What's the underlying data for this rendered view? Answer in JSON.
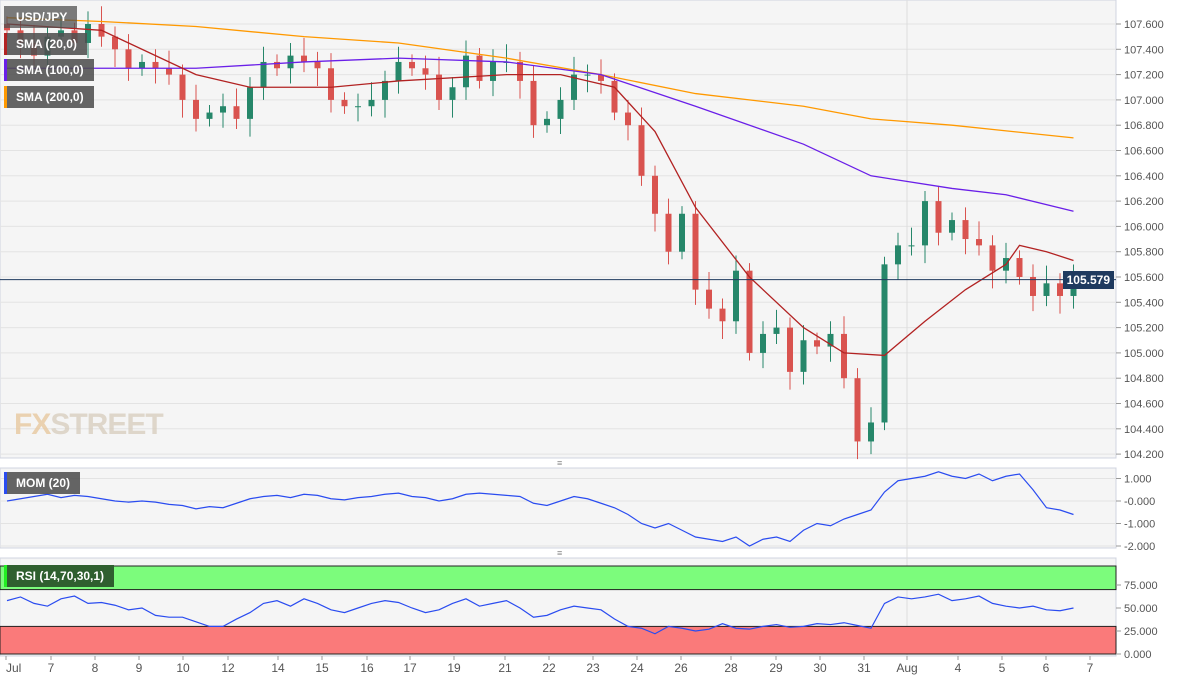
{
  "symbol": "USD/JPY",
  "last_price": "105.579",
  "logo": {
    "part1": "FX",
    "part2": "STREET"
  },
  "legends": {
    "sma20": "SMA (20,0)",
    "sma100": "SMA (100,0)",
    "sma200": "SMA (200,0)",
    "mom": "MOM (20)",
    "rsi": "RSI (14,70,30,1)"
  },
  "colors": {
    "up": "#26876a",
    "down": "#d9534f",
    "sma20": "#b22222",
    "sma100": "#6a1fe8",
    "sma200": "#ff9900",
    "mom": "#2a4cf0",
    "rsi": "#2a4cf0",
    "rsi_over": "#7cfc7c",
    "rsi_under": "#fa7a7a"
  },
  "chart_data": [
    {
      "type": "candlestick",
      "title": "USD/JPY",
      "ylim": [
        104.1,
        107.8
      ],
      "y_ticks": [
        "107.600",
        "107.400",
        "107.200",
        "107.000",
        "106.800",
        "106.600",
        "106.400",
        "106.200",
        "106.000",
        "105.800",
        "105.600",
        "105.400",
        "105.200",
        "105.000",
        "104.800",
        "104.600",
        "104.400",
        "104.200"
      ],
      "x_ticks": [
        "Jul",
        "7",
        "8",
        "9",
        "10",
        "12",
        "14",
        "15",
        "16",
        "17",
        "19",
        "21",
        "22",
        "23",
        "24",
        "26",
        "28",
        "29",
        "30",
        "31",
        "Aug",
        "4",
        "5",
        "6",
        "7"
      ],
      "close": [
        107.55,
        107.45,
        107.35,
        107.5,
        107.55,
        107.45,
        107.6,
        107.5,
        107.4,
        107.25,
        107.3,
        107.25,
        107.2,
        107.0,
        106.85,
        106.9,
        106.95,
        106.85,
        107.1,
        107.3,
        107.25,
        107.35,
        107.3,
        107.25,
        107.0,
        106.95,
        106.95,
        107.0,
        107.15,
        107.3,
        107.25,
        107.2,
        107.0,
        107.1,
        107.35,
        107.15,
        107.3,
        107.3,
        107.15,
        106.8,
        106.85,
        107.0,
        107.2,
        107.2,
        107.15,
        106.9,
        106.8,
        106.4,
        106.1,
        105.8,
        106.1,
        105.5,
        105.35,
        105.25,
        105.65,
        105.0,
        105.15,
        105.2,
        104.85,
        105.1,
        105.05,
        105.15,
        104.8,
        104.3,
        104.45,
        105.7,
        105.85,
        105.85,
        106.2,
        105.95,
        106.05,
        105.9,
        105.85,
        105.65,
        105.75,
        105.6,
        105.45,
        105.55,
        105.45,
        105.579
      ],
      "sma20": [
        [
          0,
          107.6
        ],
        [
          7,
          107.55
        ],
        [
          14,
          107.2
        ],
        [
          18,
          107.1
        ],
        [
          24,
          107.1
        ],
        [
          29,
          107.15
        ],
        [
          37,
          107.2
        ],
        [
          41,
          107.2
        ],
        [
          45,
          107.1
        ],
        [
          48,
          106.75
        ],
        [
          51,
          106.15
        ],
        [
          55,
          105.6
        ],
        [
          59,
          105.2
        ],
        [
          62,
          105.0
        ],
        [
          65,
          104.98
        ],
        [
          68,
          105.25
        ],
        [
          71,
          105.5
        ],
        [
          74,
          105.7
        ],
        [
          75,
          105.85
        ],
        [
          77,
          105.8
        ],
        [
          79,
          105.73
        ]
      ],
      "sma100": [
        [
          0,
          107.25
        ],
        [
          14,
          107.25
        ],
        [
          22,
          107.3
        ],
        [
          29,
          107.33
        ],
        [
          37,
          107.3
        ],
        [
          44,
          107.2
        ],
        [
          51,
          106.95
        ],
        [
          59,
          106.65
        ],
        [
          64,
          106.4
        ],
        [
          70,
          106.3
        ],
        [
          74,
          106.25
        ],
        [
          79,
          106.12
        ]
      ],
      "sma200": [
        [
          0,
          107.65
        ],
        [
          7,
          107.62
        ],
        [
          14,
          107.58
        ],
        [
          22,
          107.5
        ],
        [
          29,
          107.45
        ],
        [
          37,
          107.33
        ],
        [
          44,
          107.2
        ],
        [
          51,
          107.05
        ],
        [
          59,
          106.95
        ],
        [
          64,
          106.85
        ],
        [
          70,
          106.8
        ],
        [
          79,
          106.7
        ]
      ]
    },
    {
      "type": "line",
      "title": "MOM (20)",
      "ylim": [
        -2.2,
        1.3
      ],
      "y_ticks": [
        "1.000",
        "-0.000",
        "-1.000",
        "-2.000"
      ],
      "values": [
        0.0,
        0.1,
        0.2,
        0.3,
        0.15,
        0.25,
        0.2,
        0.1,
        0.0,
        -0.05,
        0.0,
        -0.05,
        -0.15,
        -0.2,
        -0.35,
        -0.25,
        -0.3,
        -0.1,
        0.1,
        0.2,
        0.25,
        0.15,
        0.3,
        0.25,
        0.1,
        0.05,
        0.15,
        0.2,
        0.3,
        0.35,
        0.2,
        0.15,
        0.0,
        0.1,
        0.3,
        0.35,
        0.3,
        0.25,
        0.2,
        -0.1,
        -0.2,
        0.0,
        0.2,
        0.1,
        -0.1,
        -0.3,
        -0.6,
        -1.0,
        -1.2,
        -1.0,
        -1.3,
        -1.6,
        -1.7,
        -1.8,
        -1.6,
        -2.0,
        -1.7,
        -1.6,
        -1.8,
        -1.3,
        -1.0,
        -1.1,
        -0.8,
        -0.6,
        -0.4,
        0.4,
        0.9,
        1.0,
        1.1,
        1.3,
        1.1,
        1.0,
        1.2,
        0.9,
        1.1,
        1.2,
        0.5,
        -0.3,
        -0.4,
        -0.6
      ]
    },
    {
      "type": "line",
      "title": "RSI (14,70,30,1)",
      "ylim": [
        0,
        100
      ],
      "levels": [
        30,
        70
      ],
      "y_ticks": [
        "75.000",
        "50.000",
        "25.000",
        "0.000"
      ],
      "values": [
        58,
        62,
        55,
        52,
        60,
        63,
        55,
        56,
        53,
        48,
        50,
        42,
        40,
        40,
        35,
        30,
        30,
        38,
        45,
        55,
        58,
        52,
        60,
        55,
        48,
        45,
        50,
        55,
        58,
        56,
        50,
        45,
        48,
        55,
        60,
        52,
        55,
        58,
        50,
        40,
        42,
        48,
        52,
        50,
        48,
        38,
        30,
        28,
        22,
        30,
        28,
        25,
        27,
        33,
        28,
        27,
        30,
        32,
        29,
        30,
        33,
        32,
        34,
        31,
        28,
        55,
        62,
        60,
        62,
        65,
        58,
        60,
        63,
        55,
        52,
        50,
        52,
        48,
        47,
        50
      ]
    }
  ]
}
